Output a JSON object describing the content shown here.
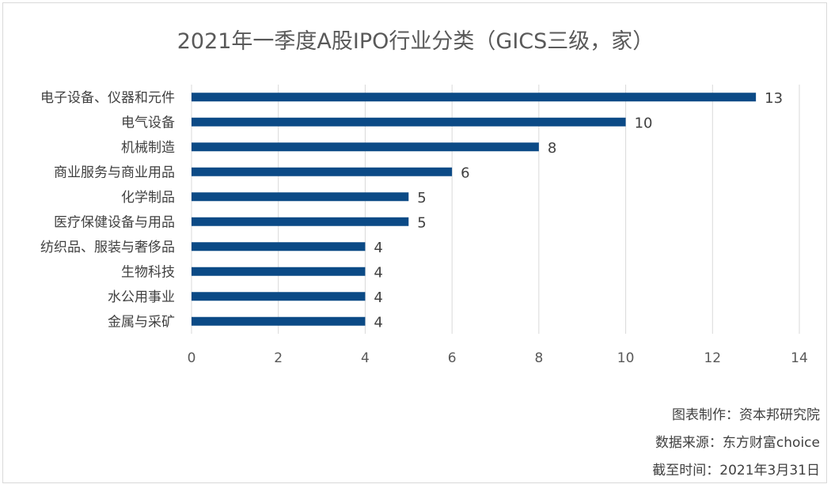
{
  "chart_data": {
    "type": "bar",
    "orientation": "horizontal",
    "title": "2021年一季度A股IPO行业分类（GICS三级，家）",
    "categories": [
      "电子设备、仪器和元件",
      "电气设备",
      "机械制造",
      "商业服务与商业用品",
      "化学制品",
      "医疗保健设备与用品",
      "纺织品、服装与奢侈品",
      "生物科技",
      "水公用事业",
      "金属与采矿"
    ],
    "values": [
      13,
      10,
      8,
      6,
      5,
      5,
      4,
      4,
      4,
      4
    ],
    "xlim": [
      0,
      14
    ],
    "xticks": [
      0,
      2,
      4,
      6,
      8,
      10,
      12,
      14
    ],
    "grid": true,
    "bar_color": "#0b4a86",
    "data_labels": true
  },
  "footnotes": {
    "maker": "图表制作：资本邦研究院",
    "source": "数据来源：东方财富choice",
    "date": "截至时间：2021年3月31日"
  }
}
